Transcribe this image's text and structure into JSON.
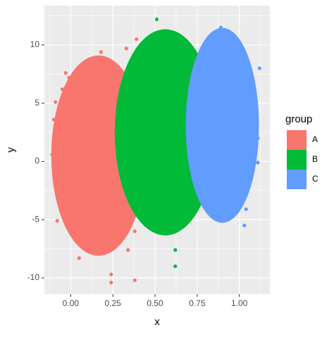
{
  "chart_data": {
    "type": "scatter",
    "x_label": "x",
    "y_label": "y",
    "legend_title": "group",
    "legend_position": "right",
    "grid": true,
    "xlim": [
      -0.156,
      1.181
    ],
    "ylim": [
      -11.39,
      13.38
    ],
    "xticks": [
      {
        "value": 0,
        "label": "0.00"
      },
      {
        "value": 0.25,
        "label": "0.25"
      },
      {
        "value": 0.5,
        "label": "0.50"
      },
      {
        "value": 0.75,
        "label": "0.75"
      },
      {
        "value": 1,
        "label": "1.00"
      }
    ],
    "yticks": [
      -10,
      -5,
      0,
      5,
      10
    ],
    "series": [
      {
        "name": "A",
        "color": "#F8766D",
        "ellipse": {
          "cx": 0.165,
          "cy": 0.5,
          "rx": 0.28,
          "ry": 8.6
        },
        "x": [
          0.18,
          0.33,
          0.39,
          -0.03,
          -0.01,
          0.03,
          -0.05,
          -0.09,
          -0.1,
          -0.09,
          -0.11,
          -0.08,
          0.38,
          0.34,
          0.05,
          0.24,
          0.24,
          0.38
        ],
        "values": [
          9.4,
          9.7,
          10.5,
          7.6,
          7.2,
          7.3,
          6.2,
          5.1,
          3.6,
          3.1,
          0.6,
          -5.1,
          -6.0,
          -7.6,
          -8.3,
          -9.7,
          -10.4,
          -10.2
        ]
      },
      {
        "name": "B",
        "color": "#00BA38",
        "ellipse": {
          "cx": 0.561,
          "cy": 2.5,
          "rx": 0.3,
          "ry": 8.85
        },
        "x": [
          0.51,
          0.62,
          0.62
        ],
        "values": [
          12.2,
          -7.6,
          -9.0
        ]
      },
      {
        "name": "C",
        "color": "#619CFF",
        "ellipse": {
          "cx": 0.899,
          "cy": 3.1,
          "rx": 0.217,
          "ry": 8.37
        },
        "x": [
          0.89,
          1.05,
          1.12,
          1.11,
          1.11,
          1.04,
          1.03
        ],
        "values": [
          11.5,
          8.5,
          8.0,
          2.0,
          -0.1,
          -4.1,
          -5.5
        ]
      }
    ]
  }
}
